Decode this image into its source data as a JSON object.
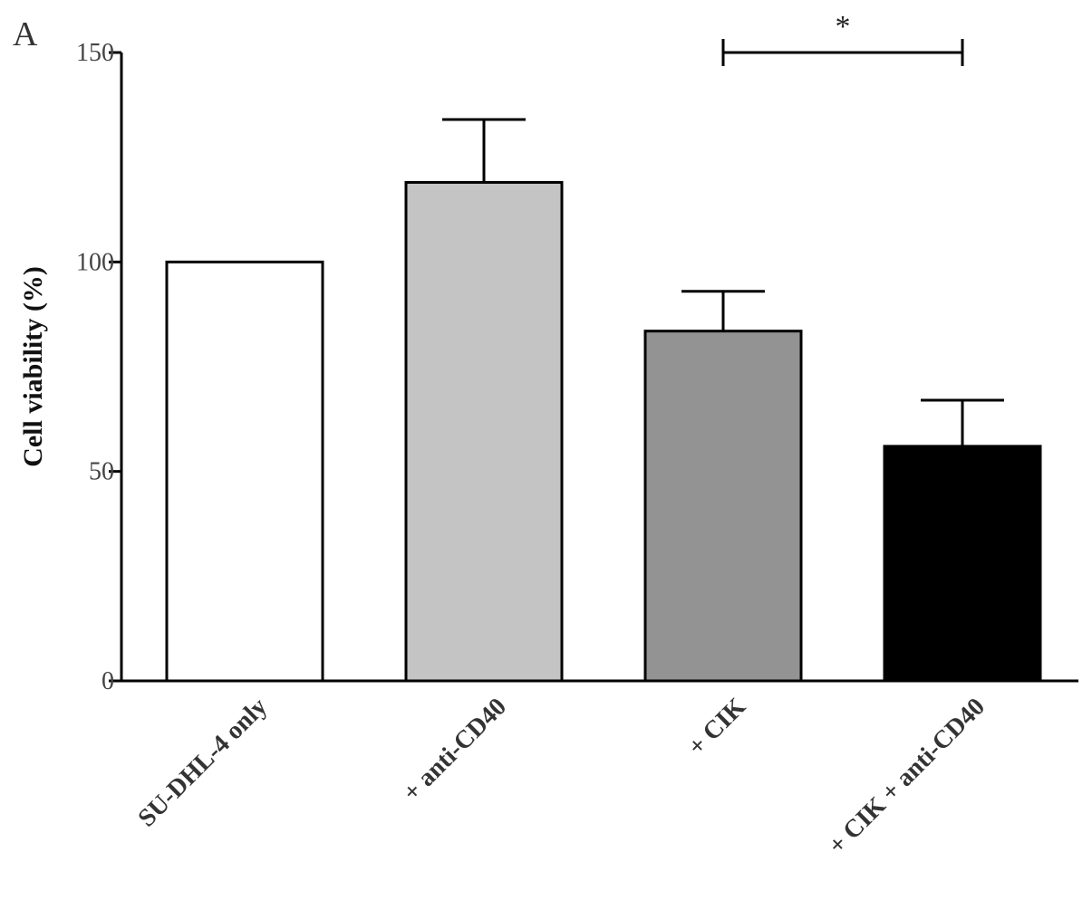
{
  "chart_data": {
    "type": "bar",
    "panel_label": "A",
    "title": "",
    "xlabel": "",
    "ylabel": "Cell viability (%)",
    "ylim": [
      0,
      150
    ],
    "yticks": [
      0,
      50,
      100,
      150
    ],
    "grid": false,
    "categories": [
      "SU-DHL-4 only",
      "+ anti-CD40",
      "+ CIK",
      "+ CIK + anti-CD40"
    ],
    "values": [
      100,
      119,
      83.5,
      56
    ],
    "errors": [
      0,
      15,
      9.5,
      11
    ],
    "bar_colors": [
      "#ffffff",
      "#c4c4c4",
      "#939393",
      "#000000"
    ],
    "significance": [
      {
        "from": "+ CIK",
        "to": "+ CIK + anti-CD40",
        "label": "*",
        "y": 150
      }
    ]
  }
}
